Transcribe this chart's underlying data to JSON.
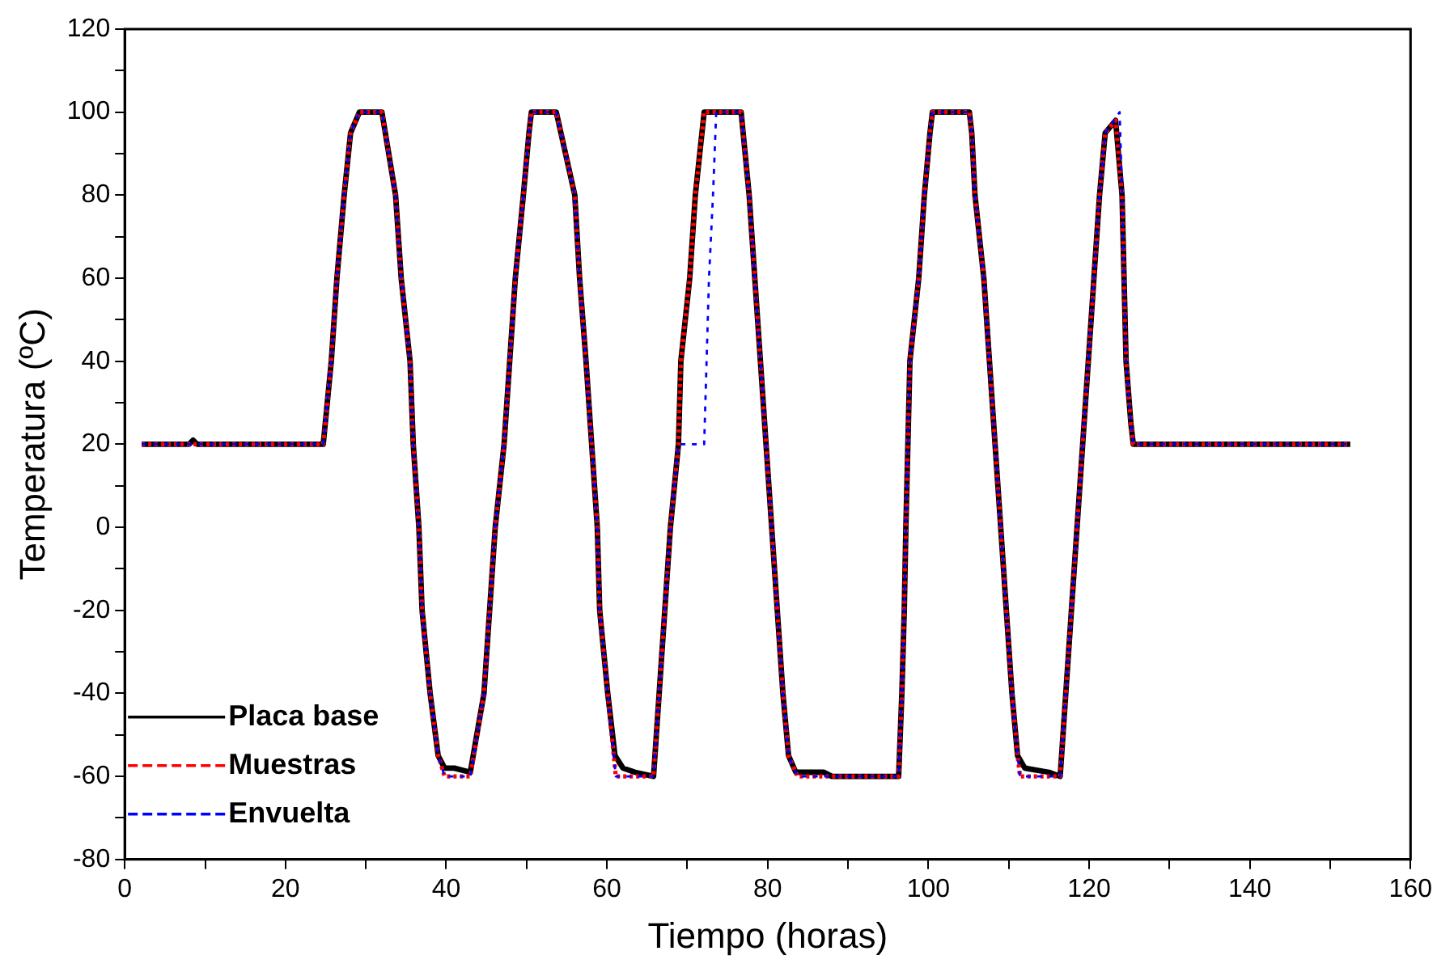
{
  "chart_data": {
    "type": "line",
    "xlabel": "Tiempo (horas)",
    "ylabel": "Temperatura (ºC)",
    "xlim": [
      0,
      160
    ],
    "ylim": [
      -80,
      120
    ],
    "xticks": [
      0,
      20,
      40,
      60,
      80,
      100,
      120,
      140,
      160
    ],
    "yticks": [
      -80,
      -60,
      -40,
      -20,
      0,
      20,
      40,
      60,
      80,
      100,
      120
    ],
    "grid": false,
    "legend": "bottom left",
    "marker": "none",
    "series": [
      {
        "name": "Placa base",
        "color": "#000000",
        "line_style": "solid",
        "x": [
          2.1,
          8,
          8.5,
          9,
          24.7,
          25.7,
          26.4,
          27.3,
          28.1,
          29.2,
          32,
          33.7,
          34.4,
          35.5,
          35.9,
          36.6,
          37,
          38,
          39,
          39.8,
          41,
          43,
          44.7,
          45.4,
          46.1,
          47.2,
          47.9,
          48.6,
          49.6,
          50.3,
          50.6,
          53.7,
          56,
          56.6,
          57.4,
          58.1,
          58.8,
          59.1,
          60.1,
          61,
          62,
          63.5,
          65.8,
          66.5,
          67.2,
          67.9,
          68.9,
          69.2,
          70.3,
          71,
          72.1,
          76.7,
          77.7,
          78.4,
          79.1,
          79.8,
          80.5,
          81.2,
          81.9,
          82.6,
          83.5,
          87,
          88,
          96.3,
          96.7,
          97,
          97.2,
          97.7,
          98.8,
          99.5,
          100.2,
          100.5,
          105.1,
          105.4,
          105.8,
          106.9,
          107.6,
          108.3,
          109,
          109.7,
          110.4,
          111.1,
          112,
          115,
          116.4,
          117.1,
          117.8,
          118.5,
          119.2,
          119.9,
          120.6,
          121.3,
          122,
          123.3,
          124.1,
          124.6,
          125.2,
          125.5,
          140,
          152.5
        ],
        "values": [
          20,
          20,
          21,
          20,
          20,
          40,
          60,
          80,
          95,
          100,
          100,
          80,
          60,
          40,
          20,
          0,
          -20,
          -40,
          -55,
          -58,
          -58,
          -59,
          -40,
          -20,
          0,
          20,
          40,
          60,
          80,
          95,
          100,
          100,
          80,
          60,
          40,
          20,
          0,
          -20,
          -40,
          -55,
          -58,
          -59,
          -60,
          -40,
          -20,
          0,
          20,
          40,
          60,
          80,
          100,
          100,
          80,
          60,
          40,
          20,
          0,
          -20,
          -40,
          -55,
          -59,
          -59,
          -60,
          -60,
          -40,
          -20,
          0,
          40,
          60,
          80,
          95,
          100,
          100,
          95,
          80,
          60,
          40,
          20,
          0,
          -20,
          -40,
          -55,
          -58,
          -59,
          -60,
          -40,
          -20,
          0,
          20,
          40,
          60,
          80,
          95,
          98,
          80,
          40,
          25,
          20,
          20,
          20
        ]
      },
      {
        "name": "Muestras",
        "color": "#ff0000",
        "line_style": "dashed",
        "x": [
          2.1,
          24.7,
          25.7,
          26.4,
          27.3,
          28.1,
          29.2,
          32,
          33.7,
          34.4,
          35.5,
          35.9,
          36.6,
          37,
          38,
          39,
          39.8,
          43,
          44.7,
          45.4,
          46.1,
          47.2,
          47.9,
          48.6,
          49.6,
          50.3,
          50.6,
          53.7,
          56,
          56.6,
          57.4,
          58.1,
          58.8,
          59.1,
          60.1,
          61.1,
          65.8,
          66.5,
          67.2,
          67.9,
          68.9,
          69.2,
          70.3,
          71,
          72.1,
          76.7,
          77.7,
          78.4,
          79.1,
          79.8,
          80.5,
          81.2,
          81.9,
          82.6,
          83.7,
          96.3,
          96.7,
          97,
          97.2,
          97.7,
          98.8,
          99.5,
          100.2,
          100.5,
          105.1,
          105.4,
          105.8,
          106.9,
          107.6,
          108.3,
          109,
          109.7,
          110.4,
          111.1,
          111.4,
          116.4,
          117.1,
          117.8,
          118.5,
          119.2,
          119.9,
          120.6,
          121.3,
          122,
          123.3,
          124.1,
          124.6,
          125.2,
          125.5,
          152.5
        ],
        "values": [
          20,
          20,
          40,
          60,
          80,
          95,
          100,
          100,
          80,
          60,
          40,
          20,
          0,
          -20,
          -40,
          -55,
          -60,
          -60,
          -40,
          -20,
          0,
          20,
          40,
          60,
          80,
          95,
          100,
          100,
          80,
          60,
          40,
          20,
          0,
          -20,
          -40,
          -60,
          -60,
          -40,
          -20,
          0,
          20,
          40,
          60,
          80,
          100,
          100,
          80,
          60,
          40,
          20,
          0,
          -20,
          -40,
          -55,
          -60,
          -60,
          -40,
          -20,
          0,
          40,
          60,
          80,
          95,
          100,
          100,
          95,
          80,
          60,
          40,
          20,
          0,
          -20,
          -40,
          -55,
          -60,
          -60,
          -40,
          -20,
          0,
          20,
          40,
          60,
          80,
          95,
          98,
          80,
          40,
          25,
          20,
          20
        ]
      },
      {
        "name": "Envuelta",
        "color": "#0000ff",
        "line_style": "dashed",
        "x": [
          2.1,
          24.7,
          25.7,
          26.4,
          27.3,
          28.1,
          29.2,
          32,
          33.7,
          34.4,
          35.5,
          35.9,
          36.6,
          37,
          38,
          39,
          39.8,
          43,
          44.7,
          45.4,
          46.1,
          47.2,
          47.9,
          48.6,
          49.6,
          50.3,
          50.6,
          53.7,
          56,
          56.6,
          57.4,
          58.1,
          58.8,
          59.1,
          60.1,
          61.1,
          65.8,
          66.5,
          67.2,
          67.9,
          68.9,
          72.1,
          72.7,
          73.2,
          73.6,
          76.7,
          77.7,
          78.4,
          79.1,
          79.8,
          80.5,
          81.2,
          81.9,
          82.6,
          83.7,
          96.3,
          96.7,
          97,
          97.2,
          97.7,
          98.8,
          99.5,
          100.2,
          100.5,
          105.1,
          105.4,
          105.8,
          106.9,
          107.6,
          108.3,
          109,
          109.7,
          110.4,
          111.1,
          111.4,
          116.4,
          117.1,
          117.8,
          118.5,
          119.2,
          119.9,
          120.6,
          121.3,
          122,
          123.8,
          124.1,
          124.6,
          125.2,
          125.5,
          152.5
        ],
        "values": [
          20,
          20,
          40,
          60,
          80,
          95,
          100,
          100,
          80,
          60,
          40,
          20,
          0,
          -20,
          -40,
          -55,
          -60,
          -60,
          -40,
          -20,
          0,
          20,
          40,
          60,
          80,
          95,
          100,
          100,
          80,
          60,
          40,
          20,
          0,
          -20,
          -40,
          -60,
          -60,
          -40,
          -20,
          0,
          20,
          20,
          60,
          80,
          100,
          100,
          80,
          60,
          40,
          20,
          0,
          -20,
          -40,
          -55,
          -60,
          -60,
          -40,
          -20,
          0,
          40,
          60,
          80,
          95,
          100,
          100,
          95,
          80,
          60,
          40,
          20,
          0,
          -20,
          -40,
          -55,
          -60,
          -60,
          -40,
          -20,
          0,
          20,
          40,
          60,
          80,
          95,
          100,
          80,
          40,
          25,
          20,
          20
        ]
      }
    ]
  }
}
